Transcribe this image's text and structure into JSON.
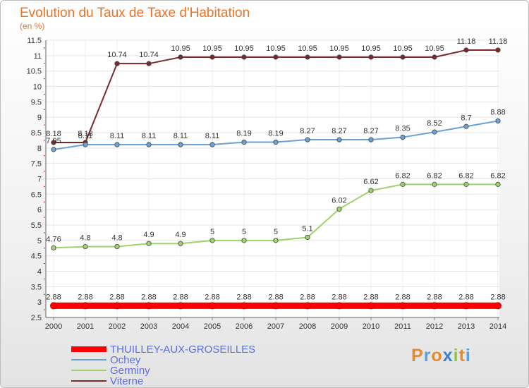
{
  "header": {
    "title": "Evolution du Taux de Taxe d'Habitation",
    "subtitle": "(en %)"
  },
  "logo": {
    "letters": [
      "P",
      "r",
      "o",
      "x",
      "i",
      "t",
      "i"
    ],
    "colors": [
      "#e88a2a",
      "#5aa0e0",
      "#e88a2a",
      "#3a7fd0",
      "#8ec63f",
      "#e88a2a",
      "#5aa0e0"
    ]
  },
  "chart_data": {
    "type": "line",
    "title": "Evolution du Taux de Taxe d'Habitation",
    "subtitle": "(en %)",
    "x": [
      "2000",
      "2001",
      "2002",
      "2003",
      "2004",
      "2005",
      "2006",
      "2007",
      "2008",
      "2009",
      "2010",
      "2011",
      "2012",
      "2013",
      "2014"
    ],
    "ylim": [
      2.5,
      11.5
    ],
    "yticks": [
      "2.5",
      "3",
      "3.5",
      "4",
      "4.5",
      "5",
      "5.5",
      "6",
      "6.5",
      "7",
      "7.5",
      "8",
      "8.5",
      "9",
      "9.5",
      "10",
      "10.5",
      "11",
      "11.5"
    ],
    "grid": true,
    "legend_position": "bottom-left",
    "series": [
      {
        "name": "THUILLEY-AUX-GROSEILLES",
        "color": "#ff0000",
        "values": [
          2.88,
          2.88,
          2.88,
          2.88,
          2.88,
          2.88,
          2.88,
          2.88,
          2.88,
          2.88,
          2.88,
          2.88,
          2.88,
          2.88,
          2.88
        ],
        "labels": [
          "2.88",
          "2.88",
          "2.88",
          "2.88",
          "2.88",
          "2.88",
          "2.88",
          "2.88",
          "2.88",
          "2.88",
          "2.88",
          "2.88",
          "2.88",
          "2.88",
          "2.88"
        ]
      },
      {
        "name": "Ochey",
        "color": "#6aa2d8",
        "values": [
          7.95,
          8.11,
          8.11,
          8.11,
          8.11,
          8.11,
          8.19,
          8.19,
          8.27,
          8.27,
          8.27,
          8.35,
          8.52,
          8.7,
          8.88
        ],
        "labels": [
          "7.95",
          "8.11",
          "8.11",
          "8.11",
          "8.11",
          "8.11",
          "8.19",
          "8.19",
          "8.27",
          "8.27",
          "8.27",
          "8.35",
          "8.52",
          "8.7",
          "8.88"
        ]
      },
      {
        "name": "Germiny",
        "color": "#9fd36a",
        "values": [
          4.76,
          4.8,
          4.8,
          4.9,
          4.9,
          5,
          5,
          5,
          5.1,
          6.02,
          6.62,
          6.82,
          6.82,
          6.82,
          6.82
        ],
        "labels": [
          "4.76",
          "4.8",
          "4.8",
          "4.9",
          "4.9",
          "5",
          "5",
          "5",
          "5.1",
          "6.02",
          "6.62",
          "6.82",
          "6.82",
          "6.82",
          "6.82"
        ]
      },
      {
        "name": "Viterne",
        "color": "#7a2a2a",
        "values": [
          8.18,
          8.18,
          10.74,
          10.74,
          10.95,
          10.95,
          10.95,
          10.95,
          10.95,
          10.95,
          10.95,
          10.95,
          10.95,
          11.18,
          11.18
        ],
        "labels": [
          "8.18",
          "8.18",
          "10.74",
          "10.74",
          "10.95",
          "10.95",
          "10.95",
          "10.95",
          "10.95",
          "10.95",
          "10.95",
          "10.95",
          "10.95",
          "11.18",
          "11.18"
        ]
      }
    ]
  }
}
